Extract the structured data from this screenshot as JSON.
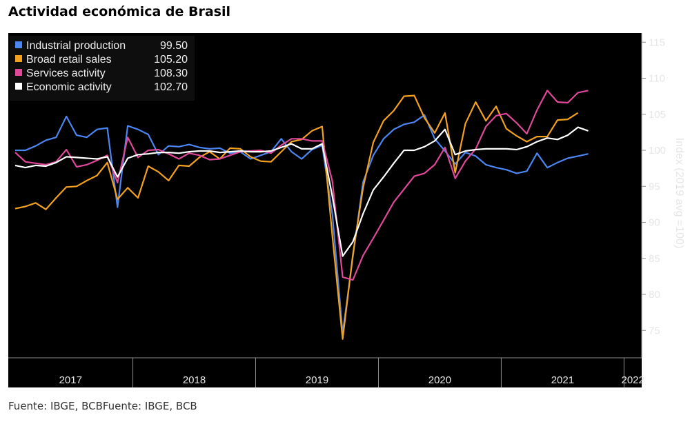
{
  "title": "Actividad económica de Brasil",
  "source": "Fuente: IBGE, BCBFuente: IBGE, BCB",
  "chart_data": {
    "type": "line",
    "title": "Actividad económica de Brasil",
    "ylabel": "Index (2019 avg =100)",
    "ylim": [
      70,
      116
    ],
    "yticks": [
      75,
      80,
      85,
      90,
      95,
      100,
      105,
      110,
      115
    ],
    "y_axis_side": "right",
    "legend_position": "top-left",
    "background": "#000000",
    "x_start": "2017-01",
    "x_end": "2022-02",
    "year_labels": [
      "2017",
      "2018",
      "2019",
      "2020",
      "2021",
      "2022"
    ],
    "series": [
      {
        "name": "Industrial production",
        "last_value": "99.50",
        "color": "#4b86f2",
        "values": [
          100.0,
          100.0,
          100.6,
          101.4,
          101.8,
          104.7,
          102.1,
          101.8,
          102.9,
          103.1,
          92.1,
          103.4,
          102.9,
          102.2,
          99.4,
          100.6,
          100.5,
          100.8,
          100.4,
          100.2,
          100.3,
          99.6,
          99.8,
          98.8,
          99.3,
          99.8,
          101.6,
          99.8,
          98.8,
          100.1,
          100.7,
          91.1,
          74.6,
          85.2,
          95.6,
          99.3,
          101.6,
          102.9,
          103.6,
          103.9,
          104.9,
          101.6,
          99.9,
          98.1,
          99.7,
          99.2,
          98.0,
          97.6,
          97.3,
          96.8,
          97.1,
          99.6,
          97.6,
          98.3,
          98.9,
          99.2,
          99.5
        ]
      },
      {
        "name": "Broad retail sales",
        "last_value": "105.20",
        "color": "#f4a11e",
        "values": [
          91.9,
          92.2,
          92.7,
          91.8,
          93.4,
          94.9,
          95.0,
          95.8,
          96.5,
          98.3,
          93.2,
          94.8,
          93.4,
          97.8,
          97.0,
          95.8,
          97.9,
          97.8,
          99.0,
          99.8,
          98.8,
          100.3,
          100.2,
          99.1,
          98.5,
          98.4,
          99.8,
          101.2,
          101.5,
          102.7,
          103.3,
          88.1,
          73.8,
          85.5,
          94.8,
          101.1,
          104.1,
          105.5,
          107.5,
          107.6,
          104.5,
          102.4,
          105.2,
          96.9,
          103.7,
          106.7,
          104.1,
          106.1,
          103.0,
          102.0,
          101.2,
          101.9,
          101.9,
          104.2,
          104.3,
          105.2
        ]
      },
      {
        "name": "Services activity",
        "last_value": "108.30",
        "color": "#e0489a",
        "values": [
          99.7,
          98.4,
          98.2,
          98.0,
          98.4,
          100.1,
          97.7,
          98.0,
          98.6,
          99.3,
          95.5,
          101.8,
          99.0,
          100.0,
          100.1,
          99.5,
          98.8,
          99.6,
          99.3,
          98.7,
          98.8,
          99.3,
          99.8,
          99.9,
          100.0,
          99.6,
          100.7,
          101.6,
          101.6,
          101.3,
          101.3,
          95.7,
          82.4,
          82.0,
          85.4,
          87.8,
          90.3,
          92.8,
          94.6,
          96.4,
          96.8,
          98.0,
          100.4,
          96.1,
          98.5,
          100.2,
          103.3,
          104.8,
          105.1,
          103.8,
          102.3,
          105.6,
          108.3,
          106.7,
          106.6,
          108.0,
          108.3
        ]
      },
      {
        "name": "Economic activity",
        "last_value": "102.70",
        "color": "#ffffff",
        "values": [
          97.9,
          97.6,
          97.9,
          97.8,
          98.3,
          99.1,
          99.0,
          98.9,
          98.8,
          99.1,
          96.3,
          98.9,
          99.4,
          99.5,
          99.7,
          99.7,
          99.6,
          99.8,
          99.9,
          99.9,
          99.7,
          99.8,
          99.9,
          99.8,
          99.8,
          99.9,
          100.4,
          100.9,
          100.2,
          100.2,
          100.9,
          93.6,
          85.3,
          87.3,
          91.2,
          94.5,
          96.3,
          98.2,
          100.0,
          100.0,
          100.5,
          101.3,
          102.9,
          99.4,
          99.9,
          100.1,
          100.2,
          100.2,
          100.2,
          100.1,
          100.5,
          101.2,
          101.7,
          101.5,
          102.1,
          103.2,
          102.7
        ]
      }
    ]
  }
}
